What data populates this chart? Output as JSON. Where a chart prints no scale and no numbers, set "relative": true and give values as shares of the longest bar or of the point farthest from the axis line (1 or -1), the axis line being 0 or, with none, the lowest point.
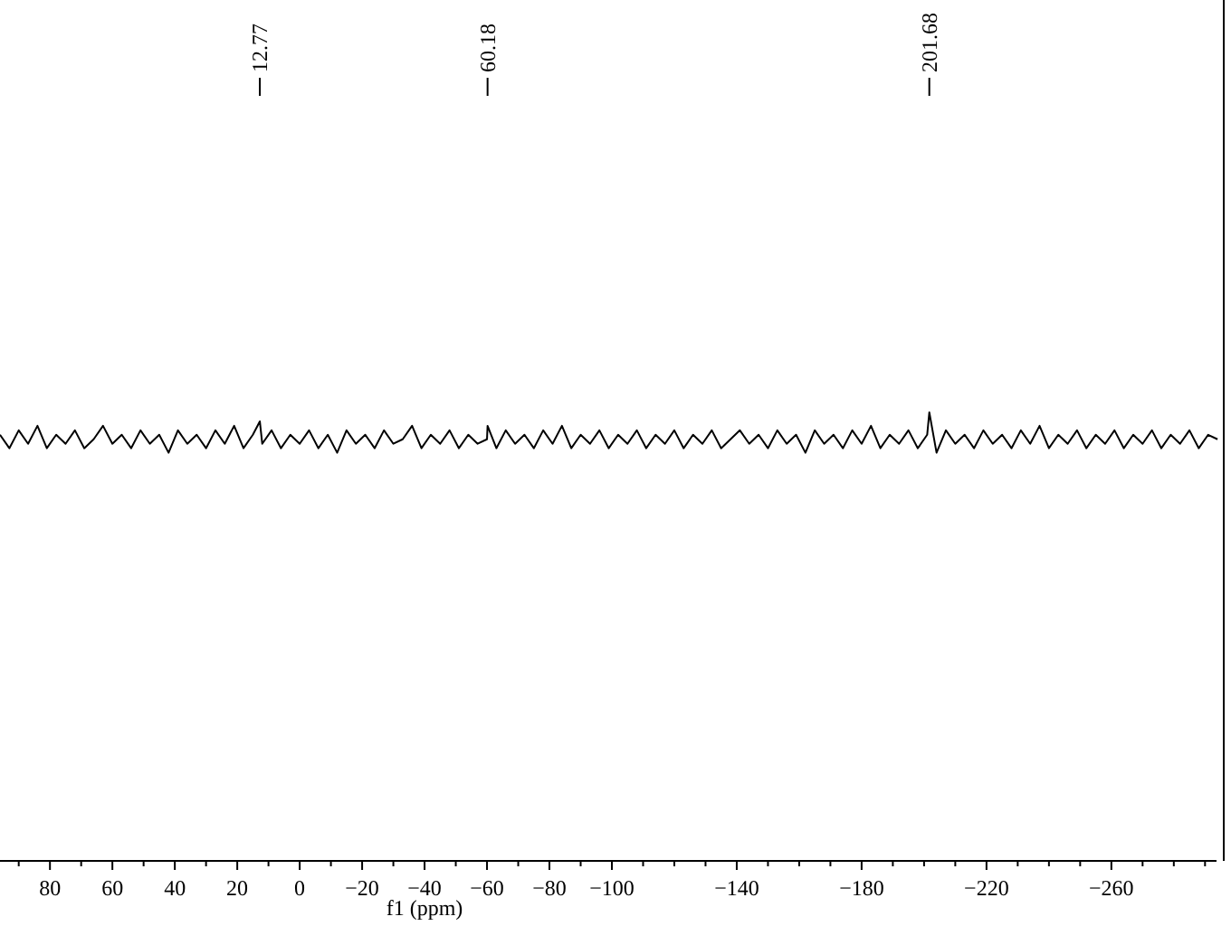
{
  "chart_data": {
    "type": "line",
    "xlabel": "f1 (ppm)",
    "relative": true,
    "grid": false,
    "line_style": "solid",
    "xlim": [
      96,
      -296
    ],
    "xticks": [
      {
        "value": 90,
        "label": null
      },
      80,
      {
        "value": 70,
        "label": null
      },
      60,
      {
        "value": 50,
        "label": null
      },
      40,
      {
        "value": 30,
        "label": null
      },
      20,
      {
        "value": 10,
        "label": null
      },
      0,
      {
        "value": -10,
        "label": null
      },
      -20,
      {
        "value": -30,
        "label": null
      },
      -40,
      {
        "value": -50,
        "label": null
      },
      -60,
      {
        "value": -70,
        "label": null
      },
      -80,
      {
        "value": -90,
        "label": null
      },
      -100,
      {
        "value": -110,
        "label": null
      },
      {
        "value": -120,
        "label": null
      },
      {
        "value": -130,
        "label": null
      },
      -140,
      {
        "value": -150,
        "label": null
      },
      {
        "value": -160,
        "label": null
      },
      {
        "value": -170,
        "label": null
      },
      -180,
      {
        "value": -190,
        "label": null
      },
      {
        "value": -200,
        "label": null
      },
      {
        "value": -210,
        "label": null
      },
      -220,
      {
        "value": -230,
        "label": null
      },
      {
        "value": -240,
        "label": null
      },
      {
        "value": -250,
        "label": null
      },
      -260,
      {
        "value": -270,
        "label": null
      },
      {
        "value": -280,
        "label": null
      },
      {
        "value": -290,
        "label": null
      }
    ],
    "annotations": [
      {
        "text": "12.77",
        "x": 12.77
      },
      {
        "text": "60.18",
        "x": -60.18
      },
      {
        "text": "201.68",
        "x": -201.68
      }
    ],
    "series": [
      {
        "color": "#000000",
        "x": [
          96,
          93,
          90,
          87,
          84,
          81,
          78,
          75,
          72,
          69,
          66,
          63,
          60,
          57,
          54,
          51,
          48,
          45,
          42,
          39,
          36,
          33,
          30,
          27,
          24,
          21,
          18,
          15,
          12.77,
          12,
          9,
          6,
          3,
          0,
          -3,
          -6,
          -9,
          -12,
          -15,
          -18,
          -21,
          -24,
          -27,
          -30,
          -33,
          -36,
          -39,
          -42,
          -45,
          -48,
          -51,
          -54,
          -57,
          -60,
          -60.18,
          -63,
          -66,
          -69,
          -72,
          -75,
          -78,
          -81,
          -84,
          -87,
          -90,
          -93,
          -96,
          -99,
          -102,
          -105,
          -108,
          -111,
          -114,
          -117,
          -120,
          -123,
          -126,
          -129,
          -132,
          -135,
          -138,
          -141,
          -144,
          -147,
          -150,
          -153,
          -156,
          -159,
          -162,
          -165,
          -168,
          -171,
          -174,
          -177,
          -180,
          -183,
          -186,
          -189,
          -192,
          -195,
          -198,
          -201,
          -201.68,
          -204,
          -207,
          -210,
          -213,
          -216,
          -219,
          -222,
          -225,
          -228,
          -231,
          -234,
          -237,
          -240,
          -243,
          -246,
          -249,
          -252,
          -255,
          -258,
          -261,
          -264,
          -267,
          -270,
          -273,
          -276,
          -279,
          -282,
          -285,
          -288,
          -291,
          -294
        ],
        "values": [
          0.95,
          0.92,
          0.96,
          0.93,
          0.97,
          0.92,
          0.95,
          0.93,
          0.96,
          0.92,
          0.94,
          0.97,
          0.93,
          0.95,
          0.92,
          0.96,
          0.93,
          0.95,
          0.91,
          0.96,
          0.93,
          0.95,
          0.92,
          0.96,
          0.93,
          0.97,
          0.92,
          0.95,
          0.98,
          0.93,
          0.96,
          0.92,
          0.95,
          0.93,
          0.96,
          0.92,
          0.95,
          0.91,
          0.96,
          0.93,
          0.95,
          0.92,
          0.96,
          0.93,
          0.94,
          0.97,
          0.92,
          0.95,
          0.93,
          0.96,
          0.92,
          0.95,
          0.93,
          0.94,
          0.97,
          0.92,
          0.96,
          0.93,
          0.95,
          0.92,
          0.96,
          0.93,
          0.97,
          0.92,
          0.95,
          0.93,
          0.96,
          0.92,
          0.95,
          0.93,
          0.96,
          0.92,
          0.95,
          0.93,
          0.96,
          0.92,
          0.95,
          0.93,
          0.96,
          0.92,
          0.94,
          0.96,
          0.93,
          0.95,
          0.92,
          0.96,
          0.93,
          0.95,
          0.91,
          0.96,
          0.93,
          0.95,
          0.92,
          0.96,
          0.93,
          0.97,
          0.92,
          0.95,
          0.93,
          0.96,
          0.92,
          0.95,
          1.0,
          0.91,
          0.96,
          0.93,
          0.95,
          0.92,
          0.96,
          0.93,
          0.95,
          0.92,
          0.96,
          0.93,
          0.97,
          0.92,
          0.95,
          0.93,
          0.96,
          0.92,
          0.95,
          0.93,
          0.96,
          0.92,
          0.95,
          0.93,
          0.96,
          0.92,
          0.95,
          0.93,
          0.96,
          0.92,
          0.95,
          0.94
        ]
      }
    ]
  }
}
